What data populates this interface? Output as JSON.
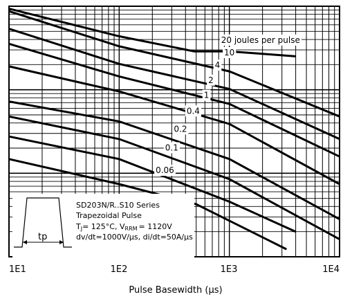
{
  "chart_data": {
    "type": "line",
    "xlabel": "Pulse Basewidth (μs)",
    "xscale": "log",
    "xlim": [
      10,
      10000
    ],
    "ylim": [
      0,
      1
    ],
    "x_tick_labels": [
      "1E1",
      "1E2",
      "1E3",
      "1E4"
    ],
    "y_tick_labels": [],
    "grid": true,
    "series": [
      {
        "name": "20 joules per pulse",
        "label": "20 joules per pulse",
        "points": [
          [
            10,
            0.99
          ],
          [
            100,
            0.88
          ],
          [
            480,
            0.82
          ],
          [
            1000,
            0.82
          ],
          [
            2000,
            0.81
          ],
          [
            4000,
            0.8
          ]
        ]
      },
      {
        "name": "10",
        "label": "10",
        "points": [
          [
            10,
            0.98
          ],
          [
            100,
            0.84
          ],
          [
            1000,
            0.74
          ],
          [
            10000,
            0.56
          ]
        ]
      },
      {
        "name": "4",
        "label": "4",
        "points": [
          [
            10,
            0.91
          ],
          [
            100,
            0.77
          ],
          [
            1000,
            0.67
          ],
          [
            10000,
            0.47
          ]
        ]
      },
      {
        "name": "2",
        "label": "2",
        "points": [
          [
            10,
            0.85
          ],
          [
            100,
            0.72
          ],
          [
            1000,
            0.61
          ],
          [
            10000,
            0.4
          ]
        ]
      },
      {
        "name": "1",
        "label": "1",
        "points": [
          [
            10,
            0.76
          ],
          [
            100,
            0.66
          ],
          [
            1000,
            0.53
          ],
          [
            10000,
            0.29
          ]
        ]
      },
      {
        "name": "0.4",
        "label": "0.4",
        "points": [
          [
            10,
            0.62
          ],
          [
            100,
            0.54
          ],
          [
            1000,
            0.39
          ],
          [
            10000,
            0.15
          ]
        ]
      },
      {
        "name": "0.2",
        "label": "0.2",
        "points": [
          [
            10,
            0.56
          ],
          [
            100,
            0.47
          ],
          [
            1000,
            0.31
          ],
          [
            10000,
            0.07
          ]
        ]
      },
      {
        "name": "0.1",
        "label": "0.1",
        "points": [
          [
            10,
            0.48
          ],
          [
            100,
            0.39
          ],
          [
            1000,
            0.22
          ],
          [
            4000,
            0.1
          ]
        ]
      },
      {
        "name": "0.06",
        "label": "0.06",
        "points": [
          [
            10,
            0.39
          ],
          [
            100,
            0.29
          ],
          [
            500,
            0.21
          ],
          [
            3300,
            0.03
          ]
        ]
      }
    ],
    "annotations": {
      "line1": "SD203N/R..S10 Series",
      "line2": "Trapezoidal Pulse",
      "line3_pre": "T",
      "line3_sub": "J",
      "line3_mid": "= 125°C, V",
      "line3_sub2": "RRM",
      "line3_post": "= 1120V",
      "line4": "dv/dt=1000V/μs, di/dt=50A/μs",
      "pulse_label": "tp"
    }
  }
}
